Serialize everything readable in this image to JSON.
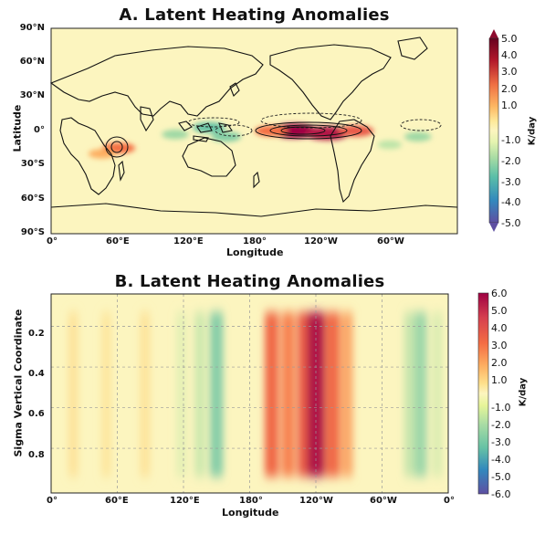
{
  "chart_data": [
    {
      "type": "heatmap",
      "title": "A. Latent Heating Anomalies",
      "xlabel": "Longitude",
      "ylabel": "Latitude",
      "x_ticks": [
        "0°",
        "60°E",
        "120°E",
        "180°",
        "120°W",
        "60°W"
      ],
      "y_ticks": [
        "90°N",
        "60°N",
        "30°N",
        "0°",
        "30°S",
        "60°S",
        "90°S"
      ],
      "colorbar": {
        "label": "K/day",
        "ticks": [
          "5.0",
          "4.0",
          "3.0",
          "2.0",
          "1.0",
          "-1.0",
          "-2.0",
          "-3.0",
          "-4.0",
          "-5.0"
        ],
        "range": [
          -5,
          5
        ],
        "colormap": "RdYlBu_r"
      },
      "anomalies": [
        {
          "lon": 215,
          "lat": 0,
          "value": 5.0
        },
        {
          "lon": 245,
          "lat": -2,
          "value": 4.5
        },
        {
          "lon": 270,
          "lat": 0,
          "value": 3.0
        },
        {
          "lon": 195,
          "lat": 0,
          "value": 2.5
        },
        {
          "lon": 60,
          "lat": -15,
          "value": 2.5
        },
        {
          "lon": 45,
          "lat": -20,
          "value": 1.5
        },
        {
          "lon": 140,
          "lat": 3,
          "value": -2.5
        },
        {
          "lon": 155,
          "lat": -5,
          "value": -2.0
        },
        {
          "lon": 110,
          "lat": -3,
          "value": -1.5
        },
        {
          "lon": 325,
          "lat": -5,
          "value": -1.5
        },
        {
          "lon": 300,
          "lat": -12,
          "value": -1.0
        }
      ]
    },
    {
      "type": "heatmap",
      "title": "B. Latent Heating Anomalies",
      "xlabel": "Longitude",
      "ylabel": "Sigma Vertical Coordinate",
      "x_ticks": [
        "0°",
        "60°E",
        "120°E",
        "180°",
        "120°W",
        "60°W",
        "0°"
      ],
      "y_ticks": [
        "0.2",
        "0.4",
        "0.6",
        "0.8"
      ],
      "colorbar": {
        "label": "K/day",
        "ticks": [
          "6.0",
          "5.0",
          "4.0",
          "3.0",
          "2.0",
          "1.0",
          "-1.0",
          "-2.0",
          "-3.0",
          "-4.0",
          "-5.0",
          "-6.0"
        ],
        "range": [
          -6,
          6
        ],
        "colormap": "RdYlBu_r"
      },
      "columns": [
        {
          "lon": 20,
          "value": 0.8
        },
        {
          "lon": 50,
          "value": 0.7
        },
        {
          "lon": 85,
          "value": 0.8
        },
        {
          "lon": 118,
          "value": -0.8
        },
        {
          "lon": 135,
          "value": -1.3
        },
        {
          "lon": 150,
          "value": -2.6
        },
        {
          "lon": 200,
          "value": 3.2
        },
        {
          "lon": 215,
          "value": 2.8
        },
        {
          "lon": 230,
          "value": 3.5
        },
        {
          "lon": 240,
          "value": 5.5
        },
        {
          "lon": 255,
          "value": 3.2
        },
        {
          "lon": 268,
          "value": 2.2
        },
        {
          "lon": 325,
          "value": -1.4
        },
        {
          "lon": 335,
          "value": -2.2
        },
        {
          "lon": 350,
          "value": -1.0
        }
      ]
    }
  ]
}
